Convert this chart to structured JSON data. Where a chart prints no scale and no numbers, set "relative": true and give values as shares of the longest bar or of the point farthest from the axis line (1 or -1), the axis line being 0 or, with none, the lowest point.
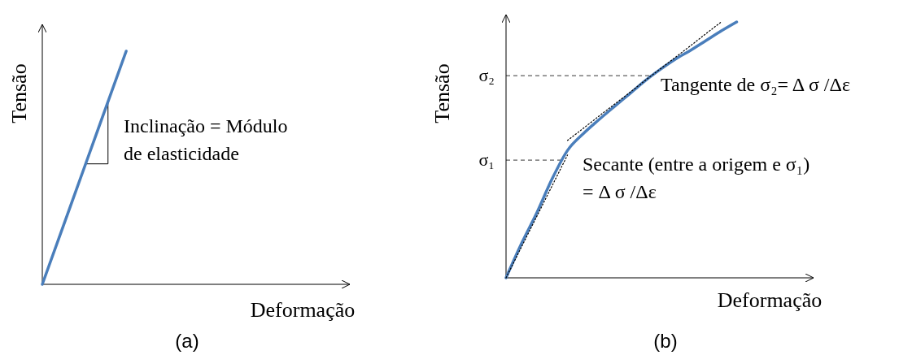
{
  "chart_data": [
    {
      "type": "line",
      "relative": true,
      "title": "(a)",
      "xlabel": "Deformação",
      "ylabel": "Tensão",
      "categories": [
        null,
        null,
        null,
        null,
        null,
        null,
        null,
        null,
        null,
        null,
        null,
        null
      ],
      "series": [
        {
          "color": "#4a7ebb",
          "line_style": "solid",
          "values": [
            0,
            0.3333,
            0.6667,
            1,
            null,
            null,
            null,
            null,
            null,
            null,
            null,
            null
          ]
        }
      ],
      "annotations": [
        "Inclinação = Módulo\nde elasticidade"
      ]
    },
    {
      "type": "line",
      "relative": true,
      "title": "(b)",
      "xlabel": "Deformação",
      "ylabel": "Tensão",
      "categories": [
        null,
        null,
        null,
        null,
        null,
        null,
        null,
        null,
        null,
        null,
        null,
        null,
        null,
        null,
        null,
        null,
        null,
        null,
        null,
        null,
        null
      ],
      "series": [
        {
          "color": "#4a7ebb",
          "line_style": "solid",
          "values": [
            0,
            0.133,
            0.254,
            0.387,
            0.498,
            0.562,
            0.616,
            0.667,
            0.717,
            0.768,
            0.813,
            0.854,
            0.889,
            0.927,
            0.965,
            1,
            null,
            null,
            null,
            null,
            null
          ]
        },
        {
          "color": "#000000",
          "line_style": "dotted",
          "values": [
            null,
            null,
            null,
            null,
            0.537,
            0.583,
            0.63,
            0.676,
            0.722,
            0.769,
            0.815,
            0.861,
            0.907,
            0.954,
            1,
            null,
            null,
            null,
            null,
            null,
            null
          ]
        },
        {
          "color": "#000000",
          "line_style": "dotted",
          "values": [
            0,
            0.12,
            0.24,
            0.36,
            0.48,
            null,
            null,
            null,
            null,
            null,
            null,
            null,
            null,
            null,
            null,
            null,
            null,
            null,
            null,
            null,
            null
          ]
        }
      ],
      "ref_lines": [
        {
          "axis": "y",
          "value": 0.46,
          "label": "σ₁",
          "line_style": "dashed"
        },
        {
          "axis": "y",
          "value": 0.79,
          "label": "σ₂",
          "line_style": "dashed"
        }
      ],
      "annotations": [
        "Tangente de σ₂= Δ σ /Δε",
        "Secante (entre a origem e σ₁)\n= Δ σ /Δε"
      ]
    }
  ]
}
